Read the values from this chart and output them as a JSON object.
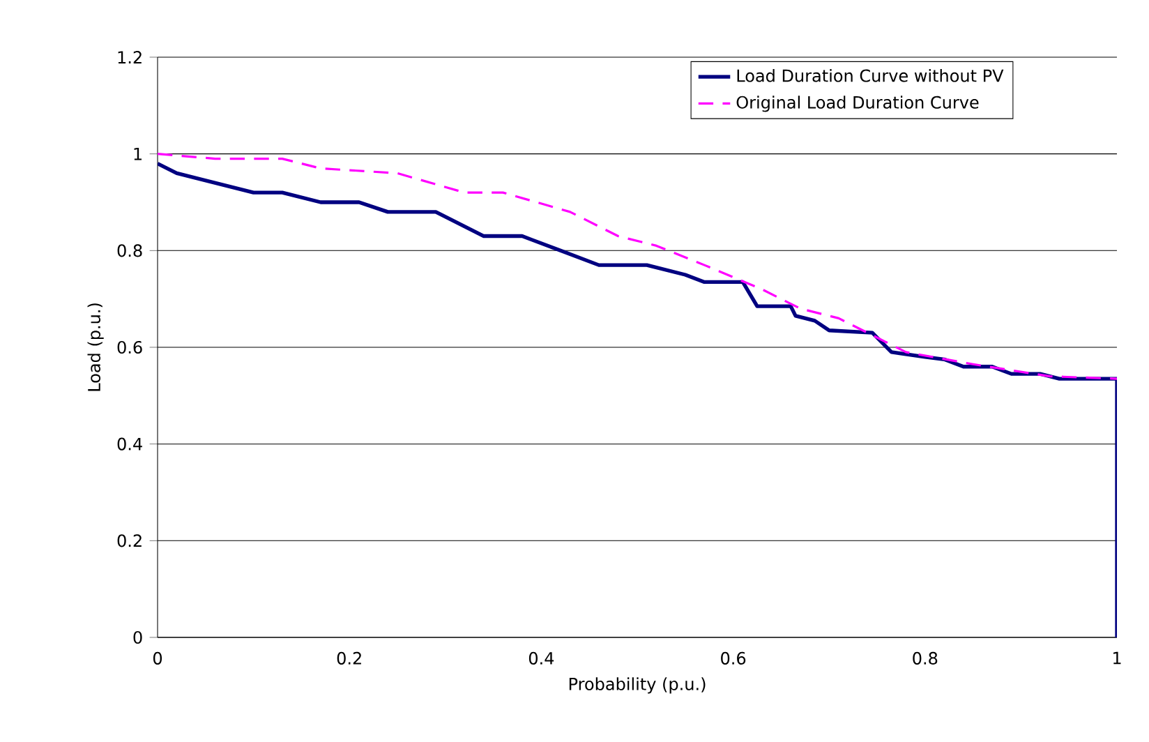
{
  "chart_data": {
    "type": "line",
    "xlabel": "Probability (p.u.)",
    "ylabel": "Load (p.u.)",
    "xlim": [
      0,
      1
    ],
    "ylim": [
      0,
      1.2
    ],
    "xticks": [
      0,
      0.2,
      0.4,
      0.6,
      0.8,
      1
    ],
    "yticks": [
      0,
      0.2,
      0.4,
      0.6,
      0.8,
      1,
      1.2
    ],
    "grid": "y",
    "legend": "top right",
    "marker": "none",
    "series": [
      {
        "name": "Load Duration Curve without PV",
        "color": "#000080",
        "line_style": "solid",
        "x": [
          0,
          0.02,
          0.1,
          0.13,
          0.17,
          0.21,
          0.24,
          0.29,
          0.34,
          0.38,
          0.42,
          0.46,
          0.51,
          0.55,
          0.57,
          0.61,
          0.625,
          0.66,
          0.665,
          0.685,
          0.7,
          0.745,
          0.765,
          0.8,
          0.82,
          0.84,
          0.87,
          0.89,
          0.92,
          0.94,
          1,
          1
        ],
        "values": [
          0.98,
          0.96,
          0.92,
          0.92,
          0.9,
          0.9,
          0.88,
          0.88,
          0.83,
          0.83,
          0.8,
          0.77,
          0.77,
          0.75,
          0.735,
          0.735,
          0.685,
          0.685,
          0.665,
          0.655,
          0.635,
          0.63,
          0.59,
          0.58,
          0.575,
          0.56,
          0.56,
          0.545,
          0.545,
          0.535,
          0.535,
          0
        ]
      },
      {
        "name": "Original Load Duration Curve",
        "color": "#ff00ff",
        "line_style": "dashed",
        "x": [
          0,
          0.06,
          0.13,
          0.17,
          0.25,
          0.32,
          0.36,
          0.43,
          0.48,
          0.52,
          0.57,
          0.63,
          0.67,
          0.71,
          0.78,
          0.85,
          0.93,
          1
        ],
        "values": [
          1,
          0.99,
          0.99,
          0.97,
          0.96,
          0.92,
          0.92,
          0.88,
          0.83,
          0.81,
          0.77,
          0.72,
          0.68,
          0.66,
          0.59,
          0.565,
          0.54,
          0.535
        ]
      }
    ]
  }
}
